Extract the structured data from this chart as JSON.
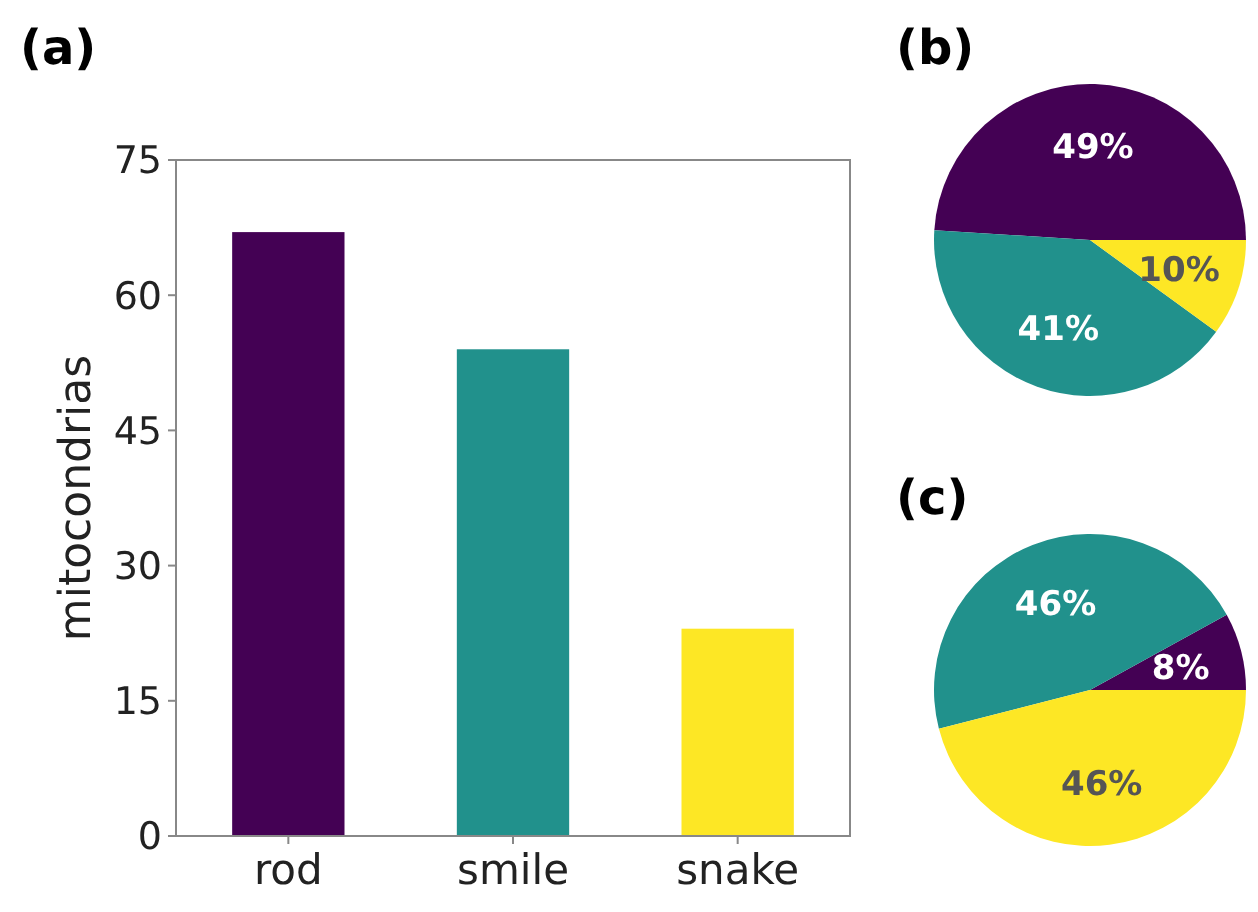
{
  "chart_data": [
    {
      "type": "bar",
      "title": "(a)",
      "ylabel": "mitocondrias",
      "categories": [
        "rod",
        "smile",
        "snake"
      ],
      "values": [
        67,
        54,
        23
      ],
      "colors": [
        "#440154",
        "#21918c",
        "#fde725"
      ],
      "ylim": [
        0,
        75
      ],
      "yticks": [
        0,
        15,
        30,
        45,
        60,
        75
      ],
      "grid": false
    },
    {
      "type": "pie",
      "title": "(b)",
      "categories": [
        null,
        null,
        null
      ],
      "values": [
        49,
        41,
        10
      ],
      "value_labels": [
        "49%",
        "41%",
        "10%"
      ],
      "colors": [
        "#440154",
        "#21918c",
        "#fde725"
      ]
    },
    {
      "type": "pie",
      "title": "(c)",
      "categories": [
        null,
        null,
        null
      ],
      "values": [
        8,
        46,
        46
      ],
      "value_labels": [
        "8%",
        "46%",
        "46%"
      ],
      "colors": [
        "#440154",
        "#21918c",
        "#fde725"
      ]
    }
  ]
}
